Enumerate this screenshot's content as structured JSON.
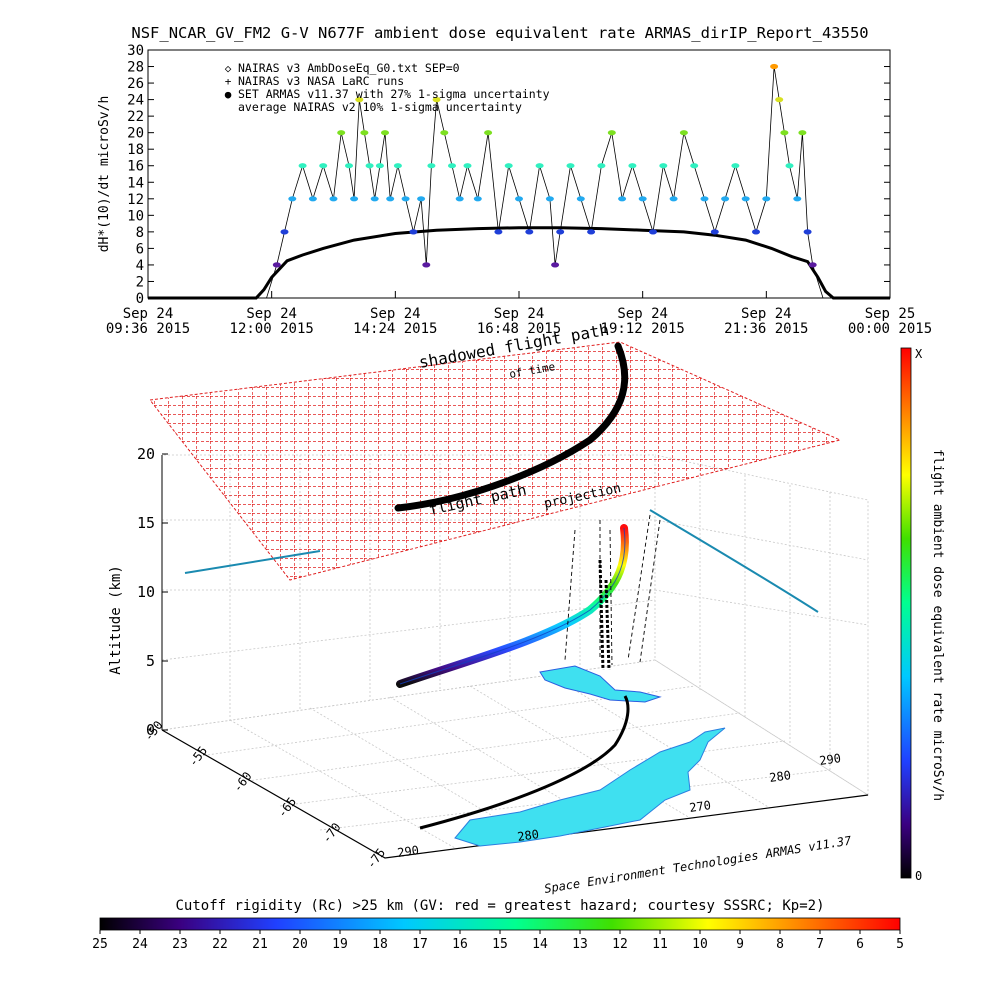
{
  "title": "NSF_NCAR_GV_FM2 G-V    N677F  ambient dose equivalent rate ARMAS_dirIP_Report_43550",
  "chart_data": [
    {
      "type": "scatter",
      "ylabel": "dH*(10)/dt microSv/h",
      "ylim": [
        0,
        30
      ],
      "yticks": [
        0,
        2,
        4,
        6,
        8,
        10,
        12,
        14,
        16,
        18,
        20,
        22,
        24,
        26,
        28,
        30
      ],
      "xlim_hours": [
        9.6,
        24.0
      ],
      "xticks": [
        {
          "line1": "Sep 24",
          "line2": "09:36 2015"
        },
        {
          "line1": "Sep 24",
          "line2": "12:00 2015"
        },
        {
          "line1": "Sep 24",
          "line2": "14:24 2015"
        },
        {
          "line1": "Sep 24",
          "line2": "16:48 2015"
        },
        {
          "line1": "Sep 24",
          "line2": "19:12 2015"
        },
        {
          "line1": "Sep 24",
          "line2": "21:36 2015"
        },
        {
          "line1": "Sep 25",
          "line2": "00:00 2015"
        }
      ],
      "legend_position": "top-left",
      "legend": [
        {
          "symbol": "◇",
          "label": "NAIRAS v3 AmbDoseEq_G0.txt SEP=0",
          "color": "#000000"
        },
        {
          "symbol": "+",
          "label": "NAIRAS v3 NASA LaRC runs",
          "color": "#000000"
        },
        {
          "symbol": "●",
          "label": "SET ARMAS v11.37 with 27% 1-sigma uncertainty",
          "color": "#1f3fd8"
        },
        {
          "symbol": "",
          "label": "average NAIRAS v2 10% 1-sigma uncertainty",
          "color": "#000000"
        }
      ],
      "nairas_series": [
        [
          9.6,
          0
        ],
        [
          11.0,
          0
        ],
        [
          11.7,
          0
        ],
        [
          11.85,
          1
        ],
        [
          12.0,
          2.5
        ],
        [
          12.3,
          4.5
        ],
        [
          12.6,
          5.2
        ],
        [
          13.0,
          6
        ],
        [
          13.6,
          7
        ],
        [
          14.4,
          7.8
        ],
        [
          15.2,
          8.2
        ],
        [
          16.0,
          8.4
        ],
        [
          16.8,
          8.5
        ],
        [
          17.6,
          8.5
        ],
        [
          18.4,
          8.4
        ],
        [
          19.2,
          8.2
        ],
        [
          20.0,
          8.0
        ],
        [
          20.6,
          7.6
        ],
        [
          21.2,
          7
        ],
        [
          21.7,
          6
        ],
        [
          22.1,
          5
        ],
        [
          22.4,
          4.4
        ],
        [
          22.6,
          2.5
        ],
        [
          22.75,
          0.8
        ],
        [
          22.9,
          0
        ],
        [
          24.0,
          0
        ]
      ],
      "armas_points": [
        [
          12.1,
          4
        ],
        [
          12.25,
          8
        ],
        [
          12.4,
          12
        ],
        [
          12.6,
          16
        ],
        [
          12.8,
          12
        ],
        [
          13.0,
          16
        ],
        [
          13.2,
          12
        ],
        [
          13.35,
          20
        ],
        [
          13.5,
          16
        ],
        [
          13.6,
          12
        ],
        [
          13.7,
          24
        ],
        [
          13.8,
          20
        ],
        [
          13.9,
          16
        ],
        [
          14.0,
          12
        ],
        [
          14.1,
          16
        ],
        [
          14.2,
          20
        ],
        [
          14.3,
          12
        ],
        [
          14.45,
          16
        ],
        [
          14.6,
          12
        ],
        [
          14.75,
          8
        ],
        [
          14.9,
          12
        ],
        [
          15.0,
          4
        ],
        [
          15.1,
          16
        ],
        [
          15.2,
          24
        ],
        [
          15.35,
          20
        ],
        [
          15.5,
          16
        ],
        [
          15.65,
          12
        ],
        [
          15.8,
          16
        ],
        [
          16.0,
          12
        ],
        [
          16.2,
          20
        ],
        [
          16.4,
          8
        ],
        [
          16.6,
          16
        ],
        [
          16.8,
          12
        ],
        [
          17.0,
          8
        ],
        [
          17.2,
          16
        ],
        [
          17.4,
          12
        ],
        [
          17.5,
          4
        ],
        [
          17.6,
          8
        ],
        [
          17.8,
          16
        ],
        [
          18.0,
          12
        ],
        [
          18.2,
          8
        ],
        [
          18.4,
          16
        ],
        [
          18.6,
          20
        ],
        [
          18.8,
          12
        ],
        [
          19.0,
          16
        ],
        [
          19.2,
          12
        ],
        [
          19.4,
          8
        ],
        [
          19.6,
          16
        ],
        [
          19.8,
          12
        ],
        [
          20.0,
          20
        ],
        [
          20.2,
          16
        ],
        [
          20.4,
          12
        ],
        [
          20.6,
          8
        ],
        [
          20.8,
          12
        ],
        [
          21.0,
          16
        ],
        [
          21.2,
          12
        ],
        [
          21.4,
          8
        ],
        [
          21.6,
          12
        ],
        [
          21.75,
          28
        ],
        [
          21.85,
          24
        ],
        [
          21.95,
          20
        ],
        [
          22.05,
          16
        ],
        [
          22.2,
          12
        ],
        [
          22.3,
          20
        ],
        [
          22.4,
          8
        ],
        [
          22.5,
          4
        ]
      ]
    },
    {
      "type": "3d-surface",
      "zlabel": "Altitude (km)",
      "zticks": [
        0,
        5,
        10,
        15,
        20
      ],
      "latitude_ticks": [
        -50,
        -55,
        -60,
        -65,
        -70,
        -75
      ],
      "longitude_ticks": [
        290,
        280,
        270,
        280,
        290
      ],
      "annotations": [
        "shadowed flight path",
        "of time",
        "flight path",
        "projection"
      ],
      "colorbar_label": "flight ambient dose equivalent rate microSv/h",
      "colorbar_top": "X",
      "colorbar_bottom": "0",
      "credit": "Space Environment Technologies ARMAS v11.37",
      "rigidity_label": "Cutoff rigidity (Rc) >25 km (GV: red = greatest hazard; courtesy SSSRC; Kp=2)",
      "rigidity_ticks": [
        25,
        24,
        23,
        22,
        21,
        20,
        19,
        18,
        17,
        16,
        15,
        14,
        13,
        12,
        11,
        10,
        9,
        8,
        7,
        6,
        5
      ]
    }
  ]
}
